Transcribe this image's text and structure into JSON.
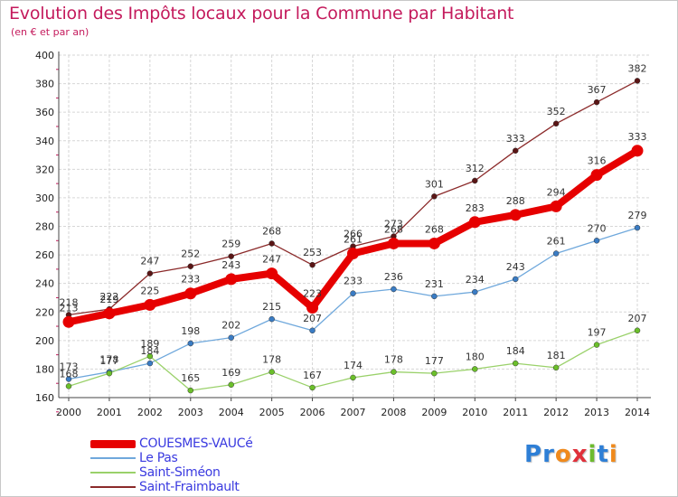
{
  "header": {
    "title": "Evolution des Impôts locaux pour la Commune par Habitant",
    "subtitle": "(en € et par an)"
  },
  "logo": {
    "text": "Proxiti",
    "letters": [
      "P",
      "r",
      "o",
      "x",
      "i",
      "t",
      "i"
    ],
    "colors": [
      "#2e7fd6",
      "#2e7fd6",
      "#f08a1c",
      "#e0303a",
      "#6dbb2e",
      "#2e7fd6",
      "#f08a1c"
    ]
  },
  "chart_data": {
    "type": "line",
    "title": "Evolution des Impôts locaux pour la Commune par Habitant",
    "subtitle": "(en € et par an)",
    "xlabel": "",
    "ylabel": "",
    "x": [
      2000,
      2001,
      2002,
      2003,
      2004,
      2005,
      2006,
      2007,
      2008,
      2009,
      2010,
      2011,
      2012,
      2013,
      2014
    ],
    "ylim": [
      160,
      400
    ],
    "yticks": [
      160,
      180,
      200,
      220,
      240,
      260,
      280,
      300,
      320,
      340,
      360,
      380,
      400
    ],
    "grid": true,
    "series": [
      {
        "name": "Saint-Fraimbault",
        "color": "#8b2a2a",
        "marker": "#5a1515",
        "values": [
          218,
          222,
          247,
          252,
          259,
          268,
          253,
          266,
          273,
          301,
          312,
          333,
          352,
          367,
          382
        ]
      },
      {
        "name": "Le Pas",
        "color": "#6fa8dc",
        "marker": "#3a7cc4",
        "values": [
          173,
          178,
          184,
          198,
          202,
          215,
          207,
          233,
          236,
          231,
          234,
          243,
          261,
          270,
          279
        ]
      },
      {
        "name": "Saint-Siméon",
        "color": "#9ad16a",
        "marker": "#6bbf2a",
        "values": [
          168,
          177,
          189,
          165,
          169,
          178,
          167,
          174,
          178,
          177,
          180,
          184,
          181,
          197,
          207
        ]
      },
      {
        "name": "COUESMES-VAUCé",
        "color": "#e60000",
        "marker": "#e60000",
        "values": [
          213,
          219,
          225,
          233,
          243,
          247,
          223,
          261,
          268,
          268,
          283,
          288,
          294,
          316,
          333
        ]
      }
    ],
    "legend": [
      {
        "name": "COUESMES-VAUCé",
        "color": "#e60000"
      },
      {
        "name": "Le Pas",
        "color": "#6fa8dc"
      },
      {
        "name": "Saint-Siméon",
        "color": "#9ad16a"
      },
      {
        "name": "Saint-Fraimbault",
        "color": "#8b2a2a"
      }
    ],
    "legend_position": "bottom-left"
  }
}
